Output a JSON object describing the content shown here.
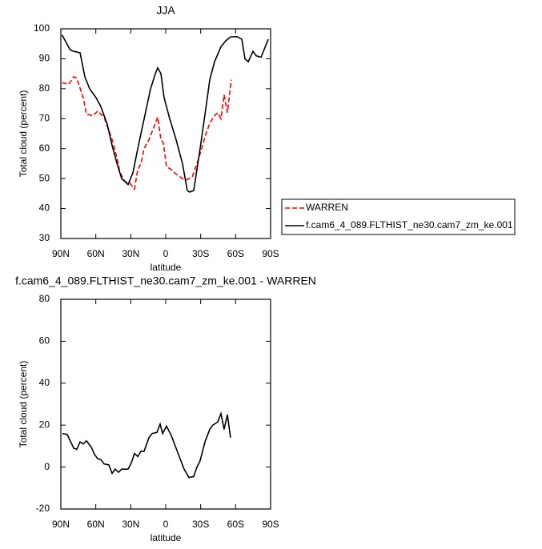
{
  "chart_data": [
    {
      "type": "line",
      "title": "JJA",
      "x_label": "latitude",
      "y_label": "Total cloud (percent)",
      "xlim": [
        90,
        -90
      ],
      "xticks": [
        {
          "value": 90,
          "label": "90N"
        },
        {
          "value": 60,
          "label": "60N"
        },
        {
          "value": 30,
          "label": "30N"
        },
        {
          "value": 0,
          "label": "0"
        },
        {
          "value": -30,
          "label": "30S"
        },
        {
          "value": -60,
          "label": "60S"
        },
        {
          "value": -90,
          "label": "90S"
        }
      ],
      "ylim": [
        30,
        100
      ],
      "yticks": [
        30,
        40,
        50,
        60,
        70,
        80,
        90,
        100
      ],
      "legend": "outside-right",
      "series": [
        {
          "name": "WARREN",
          "color": "#ff0000",
          "style": "dashed",
          "x": [
            89,
            83.1,
            79,
            76.3,
            70.8,
            68,
            62.5,
            58.4,
            52.9,
            48.8,
            46,
            41.9,
            39.2,
            35,
            30.9,
            26.8,
            24,
            21.3,
            18.6,
            14.4,
            10.3,
            6.9,
            4.1,
            2.1,
            -0.7,
            -4.8,
            -8.9,
            -14.4,
            -17.2,
            -22.7,
            -26.8,
            -30.9,
            -33.7,
            -37.8,
            -41.9,
            -44.7,
            -47.4,
            -50.1,
            -52.9,
            -56.3
          ],
          "values": [
            82,
            81.5,
            84,
            83.5,
            77,
            71.5,
            71,
            72.5,
            70.5,
            66,
            63,
            57,
            52,
            49,
            48.5,
            46.5,
            53,
            55,
            60,
            63,
            67,
            70.5,
            63,
            62,
            54,
            53,
            51.5,
            50,
            49.5,
            50.5,
            55,
            60,
            64,
            68.5,
            71,
            72,
            70,
            78,
            72,
            83
          ]
        },
        {
          "name": "f.cam6_4_089.FLTHIST_ne30.cam7_zm_ke.001",
          "color": "#000000",
          "style": "solid",
          "x": [
            89,
            82,
            79,
            73.5,
            69.4,
            65.3,
            59.8,
            55.6,
            50.1,
            46,
            41.8,
            37.8,
            32.3,
            28.1,
            24,
            18.5,
            13,
            8.9,
            6.9,
            4.1,
            1.4,
            -3.4,
            -8.9,
            -14.4,
            -18.5,
            -20.6,
            -24,
            -29.5,
            -35,
            -37.8,
            -41.9,
            -47.4,
            -51.5,
            -55.6,
            -61.1,
            -65.3,
            -68,
            -70.8,
            -74.9,
            -77.6,
            -81.8,
            -88
          ],
          "values": [
            98,
            93,
            92.5,
            92,
            84,
            80,
            77,
            74,
            68,
            61,
            55,
            50,
            48,
            52,
            60,
            70,
            80,
            85,
            87,
            85,
            77,
            70,
            63,
            55,
            46,
            45.5,
            46,
            60,
            75,
            83,
            89,
            94,
            96,
            97.3,
            97.4,
            96.5,
            90,
            89,
            92.5,
            91,
            90.5,
            96.5
          ]
        }
      ]
    },
    {
      "type": "line",
      "title": "f.cam6_4_089.FLTHIST_ne30.cam7_zm_ke.001 - WARREN",
      "x_label": "latitude",
      "y_label": "Total cloud (percent)",
      "xlim": [
        90,
        -90
      ],
      "xticks": [
        {
          "value": 90,
          "label": "90N"
        },
        {
          "value": 60,
          "label": "60N"
        },
        {
          "value": 30,
          "label": "30N"
        },
        {
          "value": 0,
          "label": "0"
        },
        {
          "value": -30,
          "label": "30S"
        },
        {
          "value": -60,
          "label": "60S"
        },
        {
          "value": -90,
          "label": "90S"
        }
      ],
      "ylim": [
        -20,
        80
      ],
      "yticks": [
        -20,
        0,
        20,
        40,
        60,
        80
      ],
      "color": "#000000",
      "x": [
        88.6,
        84.5,
        79,
        76.3,
        73.5,
        70.8,
        68,
        63.9,
        61.1,
        58.4,
        55.6,
        52.9,
        48.8,
        46,
        43.3,
        40.5,
        37.8,
        32.3,
        29.5,
        26.8,
        24,
        21.3,
        18.6,
        14.4,
        11.7,
        7.6,
        4.8,
        2.7,
        -0.7,
        -4.8,
        -8.9,
        -13,
        -15.8,
        -19.9,
        -24,
        -26.8,
        -29.5,
        -33.7,
        -37.8,
        -40.5,
        -44.7,
        -46,
        -47.4,
        -50.1,
        -52.9,
        -55.6
      ],
      "values": [
        16,
        15.5,
        9,
        8.5,
        12,
        11,
        12.5,
        9.5,
        6,
        4,
        3.5,
        1.5,
        1,
        -3,
        -1,
        -2.5,
        -1,
        -1,
        2,
        6.5,
        5,
        7.5,
        7.5,
        14,
        16,
        16.5,
        20.5,
        16,
        19.5,
        15,
        9,
        3,
        -1,
        -5,
        -4.5,
        0,
        3,
        12,
        18,
        20,
        21.5,
        23.5,
        25.5,
        18,
        25,
        14
      ]
    }
  ]
}
